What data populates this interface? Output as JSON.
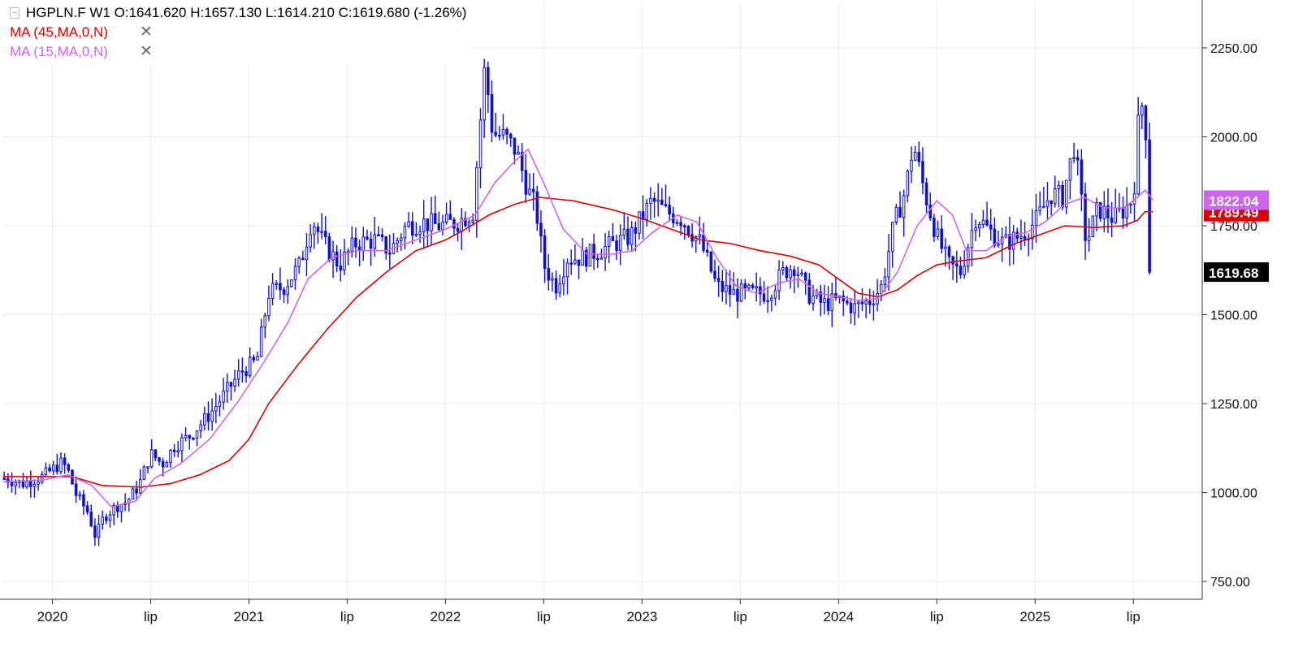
{
  "header": {
    "collapse_glyph": "[-]",
    "symbol_line": "HGPLN.F  W1  O:1641.620  H:1657.130  L:1614.210  C:1619.680  (-1.26%)",
    "indicators": [
      {
        "label": "MA (45,MA,0,N)",
        "color": "#e00000",
        "close_glyph": "✕"
      },
      {
        "label": "MA (15,MA,0,N)",
        "color": "#cc66ee",
        "close_glyph": "✕"
      }
    ]
  },
  "chart_data": {
    "type": "candlestick",
    "symbol": "HGPLN.F",
    "timeframe": "W1",
    "ohlc_last": {
      "open": 1641.62,
      "high": 1657.13,
      "low": 1614.21,
      "close": 1619.68,
      "change_pct": -1.26
    },
    "y_ticks": [
      "2250.00",
      "2000.00",
      "1750.00",
      "1500.00",
      "1250.00",
      "1000.00",
      "750.00"
    ],
    "y_tick_values": [
      2250,
      2000,
      1750,
      1500,
      1250,
      1000,
      750
    ],
    "ylim": [
      700,
      2380
    ],
    "x_range": [
      2019.75,
      2025.85
    ],
    "x_ticks": [
      {
        "label": "2020",
        "t": 2020.0
      },
      {
        "label": "lip",
        "t": 2020.5
      },
      {
        "label": "2021",
        "t": 2021.0
      },
      {
        "label": "lip",
        "t": 2021.5
      },
      {
        "label": "2022",
        "t": 2022.0
      },
      {
        "label": "lip",
        "t": 2022.5
      },
      {
        "label": "2023",
        "t": 2023.0
      },
      {
        "label": "lip",
        "t": 2023.5
      },
      {
        "label": "2024",
        "t": 2024.0
      },
      {
        "label": "lip",
        "t": 2024.5
      },
      {
        "label": "2025",
        "t": 2025.0
      },
      {
        "label": "lip",
        "t": 2025.5
      }
    ],
    "grid": true,
    "price_series": [
      {
        "t": 2019.76,
        "v": 1040
      },
      {
        "t": 2019.85,
        "v": 1025
      },
      {
        "t": 2019.95,
        "v": 1045
      },
      {
        "t": 2020.05,
        "v": 1085
      },
      {
        "t": 2020.08,
        "v": 1060
      },
      {
        "t": 2020.12,
        "v": 995
      },
      {
        "t": 2020.18,
        "v": 945
      },
      {
        "t": 2020.22,
        "v": 875
      },
      {
        "t": 2020.26,
        "v": 930
      },
      {
        "t": 2020.32,
        "v": 960
      },
      {
        "t": 2020.38,
        "v": 975
      },
      {
        "t": 2020.44,
        "v": 1020
      },
      {
        "t": 2020.5,
        "v": 1110
      },
      {
        "t": 2020.56,
        "v": 1080
      },
      {
        "t": 2020.62,
        "v": 1130
      },
      {
        "t": 2020.7,
        "v": 1160
      },
      {
        "t": 2020.8,
        "v": 1220
      },
      {
        "t": 2020.88,
        "v": 1280
      },
      {
        "t": 2020.96,
        "v": 1340
      },
      {
        "t": 2021.04,
        "v": 1370
      },
      {
        "t": 2021.1,
        "v": 1560
      },
      {
        "t": 2021.18,
        "v": 1580
      },
      {
        "t": 2021.26,
        "v": 1640
      },
      {
        "t": 2021.32,
        "v": 1770
      },
      {
        "t": 2021.38,
        "v": 1700
      },
      {
        "t": 2021.46,
        "v": 1640
      },
      {
        "t": 2021.54,
        "v": 1700
      },
      {
        "t": 2021.64,
        "v": 1710
      },
      {
        "t": 2021.72,
        "v": 1680
      },
      {
        "t": 2021.8,
        "v": 1750
      },
      {
        "t": 2021.88,
        "v": 1760
      },
      {
        "t": 2021.96,
        "v": 1750
      },
      {
        "t": 2022.06,
        "v": 1760
      },
      {
        "t": 2022.14,
        "v": 1790
      },
      {
        "t": 2022.2,
        "v": 2200
      },
      {
        "t": 2022.24,
        "v": 2010
      },
      {
        "t": 2022.3,
        "v": 2000
      },
      {
        "t": 2022.36,
        "v": 1960
      },
      {
        "t": 2022.42,
        "v": 1850
      },
      {
        "t": 2022.46,
        "v": 1800
      },
      {
        "t": 2022.5,
        "v": 1640
      },
      {
        "t": 2022.56,
        "v": 1580
      },
      {
        "t": 2022.62,
        "v": 1660
      },
      {
        "t": 2022.7,
        "v": 1660
      },
      {
        "t": 2022.78,
        "v": 1680
      },
      {
        "t": 2022.86,
        "v": 1700
      },
      {
        "t": 2022.94,
        "v": 1720
      },
      {
        "t": 2023.05,
        "v": 1820
      },
      {
        "t": 2023.12,
        "v": 1790
      },
      {
        "t": 2023.2,
        "v": 1770
      },
      {
        "t": 2023.3,
        "v": 1700
      },
      {
        "t": 2023.38,
        "v": 1580
      },
      {
        "t": 2023.46,
        "v": 1560
      },
      {
        "t": 2023.56,
        "v": 1560
      },
      {
        "t": 2023.64,
        "v": 1560
      },
      {
        "t": 2023.72,
        "v": 1620
      },
      {
        "t": 2023.78,
        "v": 1640
      },
      {
        "t": 2023.84,
        "v": 1560
      },
      {
        "t": 2023.92,
        "v": 1530
      },
      {
        "t": 2024.0,
        "v": 1540
      },
      {
        "t": 2024.08,
        "v": 1520
      },
      {
        "t": 2024.16,
        "v": 1540
      },
      {
        "t": 2024.22,
        "v": 1580
      },
      {
        "t": 2024.28,
        "v": 1750
      },
      {
        "t": 2024.34,
        "v": 1850
      },
      {
        "t": 2024.38,
        "v": 1980
      },
      {
        "t": 2024.44,
        "v": 1840
      },
      {
        "t": 2024.5,
        "v": 1720
      },
      {
        "t": 2024.56,
        "v": 1640
      },
      {
        "t": 2024.62,
        "v": 1620
      },
      {
        "t": 2024.7,
        "v": 1780
      },
      {
        "t": 2024.76,
        "v": 1740
      },
      {
        "t": 2024.84,
        "v": 1700
      },
      {
        "t": 2024.92,
        "v": 1720
      },
      {
        "t": 2025.0,
        "v": 1760
      },
      {
        "t": 2025.08,
        "v": 1840
      },
      {
        "t": 2025.14,
        "v": 1830
      },
      {
        "t": 2025.2,
        "v": 1980
      },
      {
        "t": 2025.26,
        "v": 1700
      },
      {
        "t": 2025.32,
        "v": 1800
      },
      {
        "t": 2025.4,
        "v": 1770
      },
      {
        "t": 2025.46,
        "v": 1800
      },
      {
        "t": 2025.5,
        "v": 1830
      },
      {
        "t": 2025.53,
        "v": 2080
      },
      {
        "t": 2025.56,
        "v": 2100
      },
      {
        "t": 2025.575,
        "v": 1650
      },
      {
        "t": 2025.6,
        "v": 1625
      }
    ],
    "series": [
      {
        "name": "MA (45,MA,0,N)",
        "color": "#e00000",
        "last_value": "1789.49",
        "points": [
          {
            "t": 2019.75,
            "v": 1045
          },
          {
            "t": 2020.1,
            "v": 1045
          },
          {
            "t": 2020.25,
            "v": 1020
          },
          {
            "t": 2020.45,
            "v": 1015
          },
          {
            "t": 2020.6,
            "v": 1025
          },
          {
            "t": 2020.75,
            "v": 1050
          },
          {
            "t": 2020.9,
            "v": 1090
          },
          {
            "t": 2021.0,
            "v": 1150
          },
          {
            "t": 2021.1,
            "v": 1250
          },
          {
            "t": 2021.25,
            "v": 1360
          },
          {
            "t": 2021.4,
            "v": 1460
          },
          {
            "t": 2021.55,
            "v": 1550
          },
          {
            "t": 2021.7,
            "v": 1620
          },
          {
            "t": 2021.85,
            "v": 1680
          },
          {
            "t": 2022.0,
            "v": 1710
          },
          {
            "t": 2022.1,
            "v": 1740
          },
          {
            "t": 2022.22,
            "v": 1780
          },
          {
            "t": 2022.35,
            "v": 1810
          },
          {
            "t": 2022.48,
            "v": 1830
          },
          {
            "t": 2022.65,
            "v": 1820
          },
          {
            "t": 2022.85,
            "v": 1795
          },
          {
            "t": 2023.0,
            "v": 1770
          },
          {
            "t": 2023.15,
            "v": 1740
          },
          {
            "t": 2023.3,
            "v": 1710
          },
          {
            "t": 2023.45,
            "v": 1700
          },
          {
            "t": 2023.6,
            "v": 1680
          },
          {
            "t": 2023.75,
            "v": 1665
          },
          {
            "t": 2023.9,
            "v": 1640
          },
          {
            "t": 2024.0,
            "v": 1600
          },
          {
            "t": 2024.1,
            "v": 1560
          },
          {
            "t": 2024.2,
            "v": 1550
          },
          {
            "t": 2024.3,
            "v": 1570
          },
          {
            "t": 2024.4,
            "v": 1610
          },
          {
            "t": 2024.5,
            "v": 1640
          },
          {
            "t": 2024.6,
            "v": 1650
          },
          {
            "t": 2024.75,
            "v": 1660
          },
          {
            "t": 2024.9,
            "v": 1700
          },
          {
            "t": 2025.05,
            "v": 1730
          },
          {
            "t": 2025.15,
            "v": 1750
          },
          {
            "t": 2025.3,
            "v": 1745
          },
          {
            "t": 2025.45,
            "v": 1750
          },
          {
            "t": 2025.52,
            "v": 1765
          },
          {
            "t": 2025.56,
            "v": 1790
          },
          {
            "t": 2025.6,
            "v": 1789.49
          }
        ]
      },
      {
        "name": "MA (15,MA,0,N)",
        "color": "#cc66ee",
        "last_value": "1822.04",
        "points": [
          {
            "t": 2019.75,
            "v": 1030
          },
          {
            "t": 2019.95,
            "v": 1035
          },
          {
            "t": 2020.08,
            "v": 1050
          },
          {
            "t": 2020.2,
            "v": 1020
          },
          {
            "t": 2020.3,
            "v": 960
          },
          {
            "t": 2020.42,
            "v": 975
          },
          {
            "t": 2020.52,
            "v": 1040
          },
          {
            "t": 2020.65,
            "v": 1080
          },
          {
            "t": 2020.8,
            "v": 1150
          },
          {
            "t": 2020.95,
            "v": 1260
          },
          {
            "t": 2021.08,
            "v": 1370
          },
          {
            "t": 2021.2,
            "v": 1480
          },
          {
            "t": 2021.3,
            "v": 1600
          },
          {
            "t": 2021.42,
            "v": 1660
          },
          {
            "t": 2021.55,
            "v": 1680
          },
          {
            "t": 2021.7,
            "v": 1680
          },
          {
            "t": 2021.85,
            "v": 1710
          },
          {
            "t": 2022.0,
            "v": 1740
          },
          {
            "t": 2022.15,
            "v": 1780
          },
          {
            "t": 2022.25,
            "v": 1870
          },
          {
            "t": 2022.35,
            "v": 1930
          },
          {
            "t": 2022.42,
            "v": 1965
          },
          {
            "t": 2022.5,
            "v": 1870
          },
          {
            "t": 2022.6,
            "v": 1740
          },
          {
            "t": 2022.72,
            "v": 1670
          },
          {
            "t": 2022.85,
            "v": 1670
          },
          {
            "t": 2022.95,
            "v": 1680
          },
          {
            "t": 2023.05,
            "v": 1730
          },
          {
            "t": 2023.18,
            "v": 1780
          },
          {
            "t": 2023.28,
            "v": 1760
          },
          {
            "t": 2023.38,
            "v": 1660
          },
          {
            "t": 2023.48,
            "v": 1580
          },
          {
            "t": 2023.58,
            "v": 1560
          },
          {
            "t": 2023.7,
            "v": 1590
          },
          {
            "t": 2023.8,
            "v": 1600
          },
          {
            "t": 2023.9,
            "v": 1560
          },
          {
            "t": 2024.0,
            "v": 1550
          },
          {
            "t": 2024.1,
            "v": 1540
          },
          {
            "t": 2024.2,
            "v": 1545
          },
          {
            "t": 2024.3,
            "v": 1620
          },
          {
            "t": 2024.4,
            "v": 1750
          },
          {
            "t": 2024.5,
            "v": 1820
          },
          {
            "t": 2024.58,
            "v": 1780
          },
          {
            "t": 2024.65,
            "v": 1680
          },
          {
            "t": 2024.75,
            "v": 1680
          },
          {
            "t": 2024.85,
            "v": 1720
          },
          {
            "t": 2024.95,
            "v": 1730
          },
          {
            "t": 2025.05,
            "v": 1760
          },
          {
            "t": 2025.15,
            "v": 1810
          },
          {
            "t": 2025.25,
            "v": 1830
          },
          {
            "t": 2025.35,
            "v": 1800
          },
          {
            "t": 2025.45,
            "v": 1800
          },
          {
            "t": 2025.52,
            "v": 1830
          },
          {
            "t": 2025.56,
            "v": 1850
          },
          {
            "t": 2025.6,
            "v": 1822.04
          }
        ]
      }
    ],
    "current_price_label": "1619.68",
    "candle_color": "#1010d0"
  }
}
